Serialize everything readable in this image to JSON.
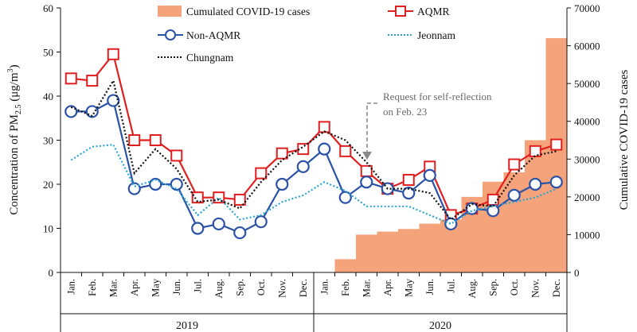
{
  "chart_data": {
    "type": "line+bar",
    "categories": [
      "Jan.",
      "Feb.",
      "Mar.",
      "Apr.",
      "May",
      "Jun.",
      "Jul.",
      "Aug.",
      "Sep.",
      "Oct.",
      "Nov.",
      "Dec.",
      "Jan.",
      "Feb.",
      "Mar.",
      "Apr.",
      "May",
      "Jun.",
      "Jul.",
      "Aug.",
      "Sep.",
      "Oct.",
      "Nov.",
      "Dec."
    ],
    "year_groups": [
      {
        "label": "2019",
        "start": 0,
        "end": 11
      },
      {
        "label": "2020",
        "start": 12,
        "end": 23
      }
    ],
    "left_axis": {
      "label_main": "Concentration of PM",
      "label_sub": "2.5",
      "label_units": " (μg/m",
      "label_sup": "3",
      "label_close": ")",
      "ylim": [
        0,
        60
      ],
      "ticks": [
        "0",
        "10",
        "20",
        "30",
        "40",
        "50",
        "60"
      ]
    },
    "right_axis": {
      "label": "Cumulative COVID-19 cases",
      "ylim": [
        0,
        70000
      ],
      "ticks": [
        "0",
        "10000",
        "20000",
        "30000",
        "40000",
        "50000",
        "60000",
        "70000"
      ]
    },
    "bars": {
      "name": "Cumulated COVID-19 cases",
      "color": "#f4a37a",
      "values": [
        0,
        0,
        0,
        0,
        0,
        0,
        0,
        0,
        0,
        0,
        0,
        0,
        0,
        3500,
        10000,
        10800,
        11500,
        12900,
        14000,
        20000,
        24000,
        26500,
        35000,
        62000
      ]
    },
    "series": [
      {
        "name": "AQMR",
        "color": "#e02020",
        "marker": "square",
        "style": "solid",
        "values": [
          44,
          43.5,
          49.5,
          30,
          30,
          26.5,
          17,
          17,
          16.5,
          22.5,
          27,
          28,
          33,
          27.5,
          23,
          19,
          21,
          24,
          13,
          14.5,
          16.5,
          24.5,
          27.5,
          29
        ]
      },
      {
        "name": "Non-AQMR",
        "color": "#2a52a6",
        "marker": "circle",
        "style": "solid",
        "values": [
          36.5,
          36.5,
          39,
          19,
          20,
          20,
          10,
          11,
          9,
          11.5,
          20,
          24,
          28,
          17,
          20.5,
          19,
          18,
          22,
          11,
          14.5,
          14,
          17.5,
          20,
          20.5
        ]
      },
      {
        "name": "Jeonnam",
        "color": "#2aa6d6",
        "marker": "none",
        "style": "dotted",
        "values": [
          25.5,
          28.5,
          29,
          19.5,
          21,
          19,
          13,
          17,
          12,
          13,
          16,
          17.5,
          20.5,
          18.5,
          15,
          15,
          15,
          13,
          11,
          14,
          15,
          16,
          17,
          19
        ]
      },
      {
        "name": "Chungnam",
        "color": "#111111",
        "marker": "none",
        "style": "dotted",
        "values": [
          37.5,
          35.5,
          43.5,
          22.5,
          28,
          23.5,
          16,
          16.5,
          14.5,
          20.5,
          25.5,
          28.5,
          32,
          30,
          25,
          19,
          19,
          18,
          12,
          15.5,
          15,
          22,
          26.5,
          27.5
        ]
      }
    ],
    "annotation": {
      "line1": "Request for self-reflection",
      "line2": "on Feb. 23",
      "target_index": 13
    },
    "legend": [
      "Cumulated COVID-19 cases",
      "AQMR",
      "Non-AQMR",
      "Jeonnam",
      "Chungnam"
    ]
  }
}
